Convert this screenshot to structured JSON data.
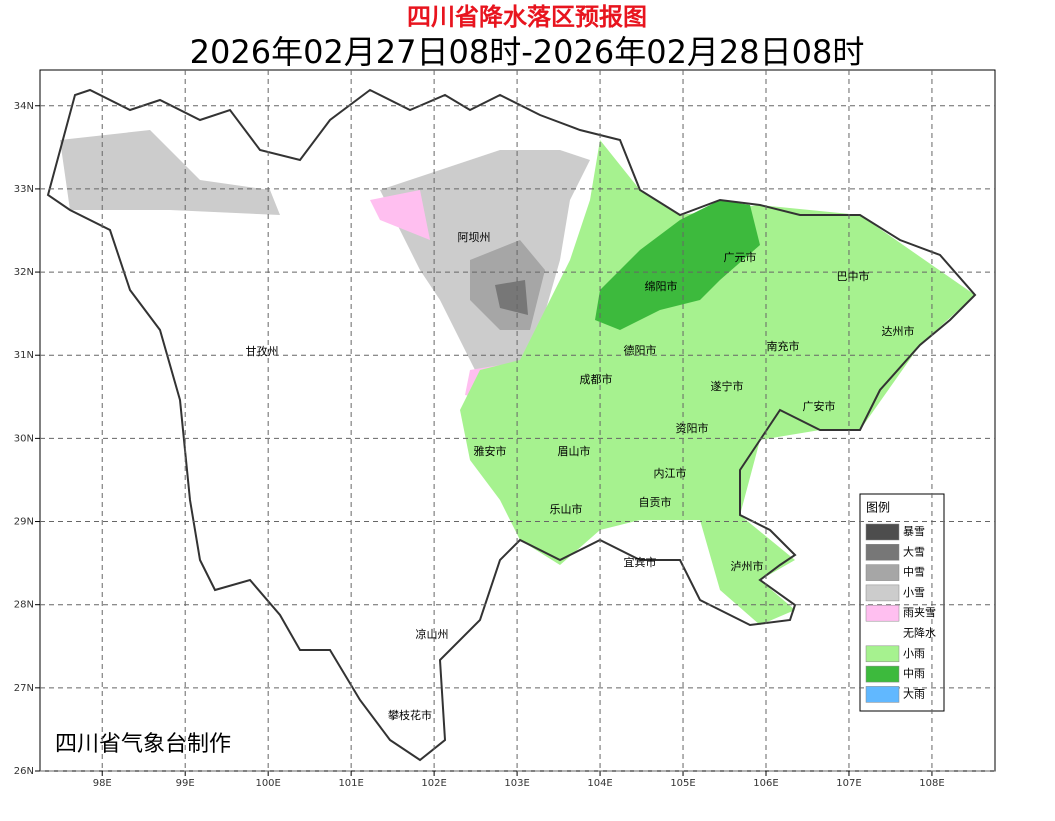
{
  "title": "四川省降水落区预报图",
  "subtitle": "2026年02月27日08时-2026年02月28日08时",
  "map": {
    "xlim": [
      97.25,
      108.76
    ],
    "ylim": [
      26,
      34.43
    ],
    "xticks": [
      {
        "value": 98,
        "label": "98E"
      },
      {
        "value": 99,
        "label": "99E"
      },
      {
        "value": 100,
        "label": "100E"
      },
      {
        "value": 101,
        "label": "101E"
      },
      {
        "value": 102,
        "label": "102E"
      },
      {
        "value": 103,
        "label": "103E"
      },
      {
        "value": 104,
        "label": "104E"
      },
      {
        "value": 105,
        "label": "105E"
      },
      {
        "value": 106,
        "label": "106E"
      },
      {
        "value": 107,
        "label": "107E"
      },
      {
        "value": 108,
        "label": "108E"
      }
    ],
    "yticks": [
      {
        "value": 26,
        "label": "26N"
      },
      {
        "value": 27,
        "label": "27N"
      },
      {
        "value": 28,
        "label": "28N"
      },
      {
        "value": 29,
        "label": "29N"
      },
      {
        "value": 30,
        "label": "30N"
      },
      {
        "value": 31,
        "label": "31N"
      },
      {
        "value": 32,
        "label": "32N"
      },
      {
        "value": 33,
        "label": "33N"
      },
      {
        "value": 34,
        "label": "34N"
      }
    ],
    "grid": true,
    "places": [
      "阿坝州",
      "广元市",
      "巴中市",
      "绵阳市",
      "达州市",
      "德阳市",
      "甘孜州",
      "南充市",
      "成都市",
      "遂宁市",
      "广安市",
      "资阳市",
      "雅安市",
      "眉山市",
      "内江市",
      "自贡市",
      "乐山市",
      "宜宾市",
      "泸州市",
      "凉山州",
      "攀枝花市"
    ]
  },
  "legend": {
    "title": "图例",
    "items": [
      {
        "label": "暴雪",
        "color": "#4d4d4d"
      },
      {
        "label": "大雪",
        "color": "#777777"
      },
      {
        "label": "中雪",
        "color": "#a6a6a6"
      },
      {
        "label": "小雪",
        "color": "#cccccc"
      },
      {
        "label": "雨夹雪",
        "color": "#ffbff0"
      },
      {
        "label": "无降水",
        "color": "#ffffff"
      },
      {
        "label": "小雨",
        "color": "#a6f28f"
      },
      {
        "label": "中雨",
        "color": "#3dba3d"
      },
      {
        "label": "大雨",
        "color": "#61b8ff"
      }
    ]
  },
  "credit": "四川省气象台制作"
}
